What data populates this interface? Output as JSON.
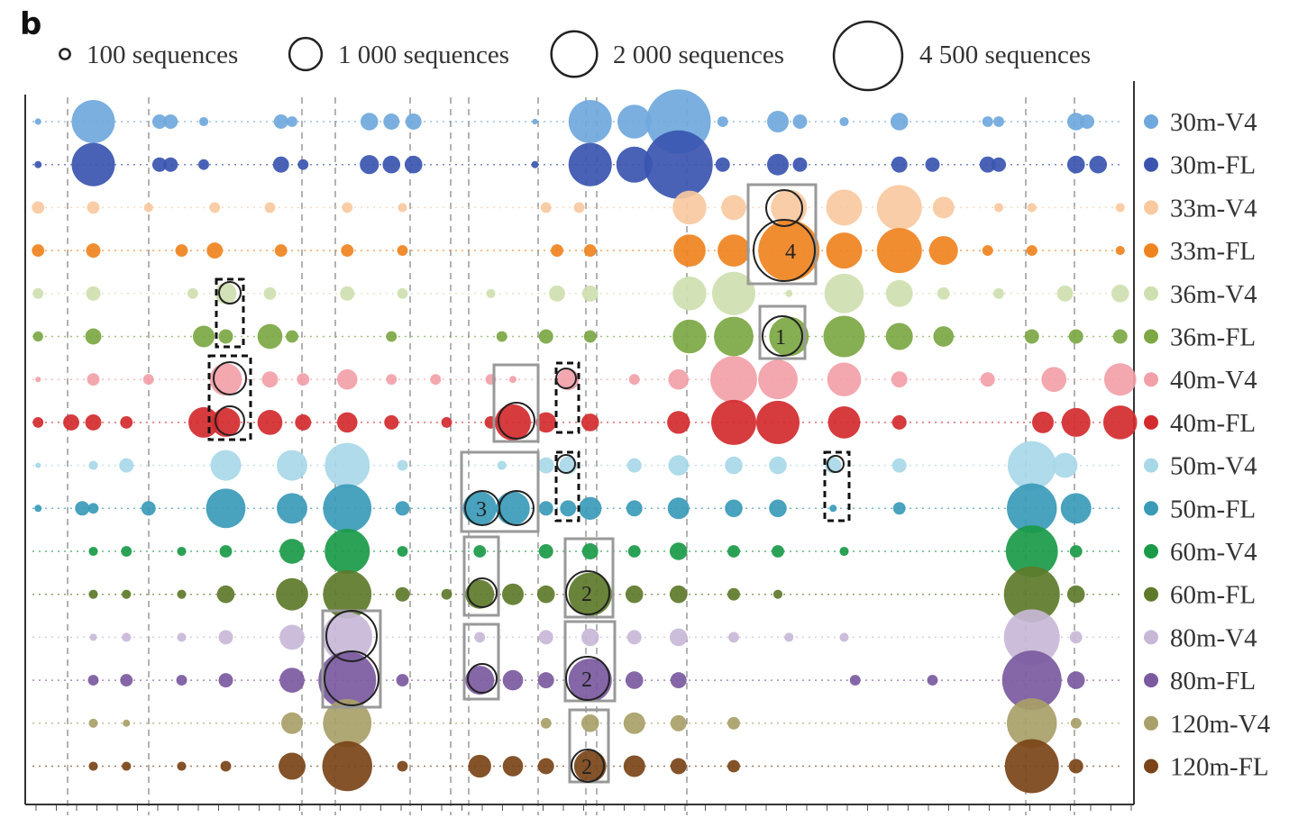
{
  "panel_label": "b",
  "chart_data": {
    "type": "bubble",
    "title": "",
    "xlabel": "",
    "ylabel": "",
    "size_legend": [
      {
        "value": 100,
        "label": "100 sequences"
      },
      {
        "value": 1000,
        "label": "1 000 sequences"
      },
      {
        "value": 2000,
        "label": "2 000 sequences"
      },
      {
        "value": 4500,
        "label": "4 500 sequences"
      }
    ],
    "legend_position": "right",
    "x_unit": "OTU position (unlabeled)",
    "series": [
      {
        "name": "30m-V4",
        "color": "#6fa8dc",
        "points": [
          [
            1,
            40
          ],
          [
            6,
            1800
          ],
          [
            12,
            200
          ],
          [
            13,
            200
          ],
          [
            16,
            80
          ],
          [
            23,
            200
          ],
          [
            24,
            110
          ],
          [
            31,
            300
          ],
          [
            33,
            250
          ],
          [
            35,
            250
          ],
          [
            46,
            30
          ],
          [
            51,
            1800
          ],
          [
            55,
            1100
          ],
          [
            59,
            4000
          ],
          [
            63,
            110
          ],
          [
            68,
            450
          ],
          [
            70,
            200
          ],
          [
            74,
            80
          ],
          [
            79,
            300
          ],
          [
            87,
            110
          ],
          [
            88,
            110
          ],
          [
            95,
            300
          ],
          [
            96,
            200
          ]
        ]
      },
      {
        "name": "30m-FL",
        "color": "#3a55b0",
        "points": [
          [
            1,
            50
          ],
          [
            6,
            1800
          ],
          [
            12,
            200
          ],
          [
            13,
            200
          ],
          [
            16,
            110
          ],
          [
            23,
            250
          ],
          [
            25,
            110
          ],
          [
            31,
            350
          ],
          [
            33,
            300
          ],
          [
            35,
            300
          ],
          [
            46,
            50
          ],
          [
            51,
            1800
          ],
          [
            55,
            1250
          ],
          [
            59,
            4500
          ],
          [
            63,
            200
          ],
          [
            68,
            450
          ],
          [
            70,
            200
          ],
          [
            79,
            250
          ],
          [
            82,
            200
          ],
          [
            87,
            250
          ],
          [
            88,
            200
          ],
          [
            95,
            300
          ],
          [
            97,
            300
          ]
        ]
      },
      {
        "name": "33m-V4",
        "color": "#f9c9a0",
        "points": [
          [
            1,
            150
          ],
          [
            6,
            150
          ],
          [
            11,
            80
          ],
          [
            17,
            110
          ],
          [
            22,
            110
          ],
          [
            29,
            110
          ],
          [
            34,
            80
          ],
          [
            47,
            110
          ],
          [
            50,
            110
          ],
          [
            60,
            1100
          ],
          [
            64,
            600
          ],
          [
            69,
            1250
          ],
          [
            74,
            1250
          ],
          [
            79,
            1950
          ],
          [
            83,
            450
          ],
          [
            88,
            80
          ],
          [
            91,
            80
          ],
          [
            99,
            80
          ]
        ]
      },
      {
        "name": "33m-FL",
        "color": "#ef8320",
        "points": [
          [
            1,
            150
          ],
          [
            6,
            200
          ],
          [
            14,
            150
          ],
          [
            17,
            250
          ],
          [
            23,
            150
          ],
          [
            29,
            150
          ],
          [
            34,
            110
          ],
          [
            48,
            150
          ],
          [
            51,
            150
          ],
          [
            60,
            1000
          ],
          [
            64,
            1000
          ],
          [
            69,
            3600
          ],
          [
            74,
            1250
          ],
          [
            79,
            1950
          ],
          [
            83,
            800
          ],
          [
            87,
            110
          ],
          [
            91,
            110
          ],
          [
            99,
            80
          ]
        ]
      },
      {
        "name": "36m-V4",
        "color": "#cfe0b0",
        "points": [
          [
            1,
            110
          ],
          [
            6,
            200
          ],
          [
            15,
            110
          ],
          [
            18,
            450
          ],
          [
            22,
            150
          ],
          [
            29,
            200
          ],
          [
            34,
            110
          ],
          [
            42,
            80
          ],
          [
            48,
            250
          ],
          [
            51,
            250
          ],
          [
            60,
            1100
          ],
          [
            64,
            1800
          ],
          [
            69,
            50
          ],
          [
            74,
            1500
          ],
          [
            79,
            700
          ],
          [
            83,
            150
          ],
          [
            88,
            110
          ],
          [
            94,
            250
          ],
          [
            99,
            300
          ]
        ]
      },
      {
        "name": "36m-FL",
        "color": "#7ca743",
        "points": [
          [
            1,
            100
          ],
          [
            6,
            250
          ],
          [
            16,
            450
          ],
          [
            18,
            200
          ],
          [
            22,
            600
          ],
          [
            24,
            150
          ],
          [
            33,
            110
          ],
          [
            43,
            110
          ],
          [
            47,
            200
          ],
          [
            51,
            150
          ],
          [
            60,
            1100
          ],
          [
            64,
            1500
          ],
          [
            69,
            1500
          ],
          [
            74,
            1650
          ],
          [
            79,
            700
          ],
          [
            83,
            400
          ],
          [
            91,
            200
          ],
          [
            95,
            200
          ],
          [
            99,
            200
          ]
        ]
      },
      {
        "name": "40m-V4",
        "color": "#f2a0a8",
        "points": [
          [
            1,
            30
          ],
          [
            6,
            150
          ],
          [
            11,
            110
          ],
          [
            18,
            1000
          ],
          [
            22,
            250
          ],
          [
            25,
            150
          ],
          [
            29,
            400
          ],
          [
            33,
            110
          ],
          [
            37,
            110
          ],
          [
            42,
            110
          ],
          [
            44,
            50
          ],
          [
            49,
            450
          ],
          [
            55,
            110
          ],
          [
            59,
            400
          ],
          [
            64,
            2100
          ],
          [
            68,
            1500
          ],
          [
            74,
            1100
          ],
          [
            79,
            250
          ],
          [
            87,
            200
          ],
          [
            93,
            600
          ],
          [
            99,
            1000
          ]
        ]
      },
      {
        "name": "40m-FL",
        "color": "#d32a2e",
        "points": [
          [
            1,
            110
          ],
          [
            4,
            250
          ],
          [
            6,
            250
          ],
          [
            9,
            150
          ],
          [
            16,
            900
          ],
          [
            18,
            800
          ],
          [
            22,
            600
          ],
          [
            25,
            250
          ],
          [
            29,
            400
          ],
          [
            33,
            200
          ],
          [
            38,
            110
          ],
          [
            42,
            150
          ],
          [
            44,
            1250
          ],
          [
            47,
            400
          ],
          [
            51,
            300
          ],
          [
            59,
            500
          ],
          [
            64,
            1950
          ],
          [
            68,
            1800
          ],
          [
            74,
            1000
          ],
          [
            79,
            200
          ],
          [
            92,
            450
          ],
          [
            95,
            800
          ],
          [
            99,
            1100
          ]
        ]
      },
      {
        "name": "50m-V4",
        "color": "#a8d8e8",
        "points": [
          [
            1,
            30
          ],
          [
            6,
            80
          ],
          [
            9,
            200
          ],
          [
            18,
            900
          ],
          [
            24,
            900
          ],
          [
            29,
            1950
          ],
          [
            34,
            110
          ],
          [
            43,
            80
          ],
          [
            47,
            250
          ],
          [
            49,
            300
          ],
          [
            55,
            200
          ],
          [
            59,
            400
          ],
          [
            64,
            300
          ],
          [
            68,
            300
          ],
          [
            73,
            250
          ],
          [
            79,
            200
          ],
          [
            91,
            2250
          ],
          [
            94,
            600
          ]
        ]
      },
      {
        "name": "50m-FL",
        "color": "#3a9ab8",
        "points": [
          [
            1,
            50
          ],
          [
            5,
            200
          ],
          [
            6,
            110
          ],
          [
            11,
            200
          ],
          [
            18,
            1500
          ],
          [
            24,
            900
          ],
          [
            29,
            2250
          ],
          [
            34,
            200
          ],
          [
            41,
            1100
          ],
          [
            44,
            1100
          ],
          [
            47,
            200
          ],
          [
            49,
            250
          ],
          [
            51,
            500
          ],
          [
            55,
            250
          ],
          [
            59,
            450
          ],
          [
            64,
            300
          ],
          [
            68,
            300
          ],
          [
            73,
            50
          ],
          [
            79,
            150
          ],
          [
            91,
            2400
          ],
          [
            95,
            900
          ]
        ]
      },
      {
        "name": "60m-V4",
        "color": "#1a9a48",
        "points": [
          [
            6,
            80
          ],
          [
            9,
            110
          ],
          [
            14,
            80
          ],
          [
            18,
            150
          ],
          [
            24,
            600
          ],
          [
            29,
            1950
          ],
          [
            34,
            110
          ],
          [
            41,
            150
          ],
          [
            47,
            200
          ],
          [
            51,
            250
          ],
          [
            55,
            150
          ],
          [
            59,
            300
          ],
          [
            64,
            150
          ],
          [
            68,
            150
          ],
          [
            74,
            80
          ],
          [
            91,
            2600
          ],
          [
            95,
            150
          ]
        ]
      },
      {
        "name": "60m-FL",
        "color": "#5e7a2a",
        "points": [
          [
            6,
            80
          ],
          [
            9,
            80
          ],
          [
            14,
            80
          ],
          [
            18,
            300
          ],
          [
            24,
            1000
          ],
          [
            29,
            2250
          ],
          [
            34,
            200
          ],
          [
            38,
            110
          ],
          [
            41,
            800
          ],
          [
            44,
            450
          ],
          [
            47,
            300
          ],
          [
            51,
            1800
          ],
          [
            55,
            300
          ],
          [
            59,
            300
          ],
          [
            64,
            150
          ],
          [
            68,
            80
          ],
          [
            91,
            3000
          ],
          [
            95,
            300
          ]
        ]
      },
      {
        "name": "80m-V4",
        "color": "#c8b8d8",
        "points": [
          [
            6,
            50
          ],
          [
            9,
            80
          ],
          [
            14,
            80
          ],
          [
            18,
            200
          ],
          [
            24,
            600
          ],
          [
            29,
            2400
          ],
          [
            41,
            110
          ],
          [
            47,
            200
          ],
          [
            51,
            300
          ],
          [
            55,
            200
          ],
          [
            59,
            300
          ],
          [
            64,
            110
          ],
          [
            69,
            80
          ],
          [
            74,
            80
          ],
          [
            91,
            3000
          ],
          [
            95,
            150
          ]
        ]
      },
      {
        "name": "80m-FL",
        "color": "#7b5aa0",
        "points": [
          [
            6,
            110
          ],
          [
            9,
            150
          ],
          [
            14,
            110
          ],
          [
            18,
            200
          ],
          [
            24,
            600
          ],
          [
            29,
            3200
          ],
          [
            34,
            150
          ],
          [
            41,
            800
          ],
          [
            44,
            400
          ],
          [
            47,
            250
          ],
          [
            51,
            1800
          ],
          [
            55,
            300
          ],
          [
            59,
            250
          ],
          [
            75,
            110
          ],
          [
            82,
            110
          ],
          [
            91,
            3400
          ],
          [
            95,
            300
          ]
        ]
      },
      {
        "name": "120m-V4",
        "color": "#a8a068",
        "points": [
          [
            6,
            80
          ],
          [
            9,
            50
          ],
          [
            24,
            450
          ],
          [
            29,
            2250
          ],
          [
            47,
            110
          ],
          [
            51,
            300
          ],
          [
            55,
            450
          ],
          [
            59,
            250
          ],
          [
            64,
            150
          ],
          [
            91,
            2400
          ],
          [
            95,
            110
          ]
        ]
      },
      {
        "name": "120m-FL",
        "color": "#7a4418",
        "points": [
          [
            6,
            80
          ],
          [
            9,
            80
          ],
          [
            14,
            80
          ],
          [
            18,
            110
          ],
          [
            24,
            700
          ],
          [
            29,
            2400
          ],
          [
            34,
            110
          ],
          [
            41,
            500
          ],
          [
            44,
            400
          ],
          [
            47,
            250
          ],
          [
            51,
            1000
          ],
          [
            55,
            450
          ],
          [
            59,
            250
          ],
          [
            64,
            150
          ],
          [
            91,
            2800
          ],
          [
            95,
            200
          ]
        ]
      }
    ],
    "annotations": [
      "4",
      "1",
      "3",
      "2",
      "2",
      "2"
    ]
  }
}
